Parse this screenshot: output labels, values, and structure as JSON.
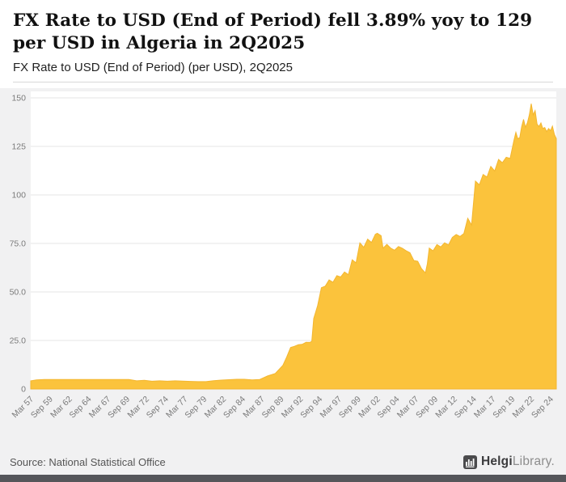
{
  "colors": {
    "page_bg": "#f1f1f2",
    "header_bg": "#ffffff",
    "plot_bg": "#ffffff",
    "area_fill": "#FBC33C",
    "area_edge": "#f3b62f",
    "gridline": "#e6e6e6",
    "baseline": "#cfcfcf",
    "tick_text": "#7a7a7a",
    "bottom_bar": "#55565a"
  },
  "footer": {
    "source": "Source: National Statistical Office",
    "logo_bold": "Helgi",
    "logo_light": "Library."
  },
  "chart_data": {
    "type": "area",
    "title": "FX Rate to USD (End of Period) fell 3.89% yoy to 129 per USD in Algeria in 2Q2025",
    "title_line1": "FX Rate to USD (End of Period) fell 3.89% yoy to 129",
    "title_line2": "per USD in Algeria in 2Q2025",
    "subtitle": "FX Rate to USD (End of Period) (per USD), 2Q2025",
    "country": "Algeria",
    "unit": "per USD",
    "period": "2Q2025",
    "latest_value": 129,
    "yoy_change_pct": -3.89,
    "grid": true,
    "legend": "none",
    "xlim": [
      1957.25,
      2025.5
    ],
    "ylim": [
      0,
      150
    ],
    "fill_color": "#FBC33C",
    "edge_color": "#f3b62f",
    "yticks": [
      {
        "v": 0,
        "label": "0"
      },
      {
        "v": 25,
        "label": "25.0"
      },
      {
        "v": 50,
        "label": "50.0"
      },
      {
        "v": 75,
        "label": "75.0"
      },
      {
        "v": 100,
        "label": "100"
      },
      {
        "v": 125,
        "label": "125"
      },
      {
        "v": 150,
        "label": "150"
      }
    ],
    "xticks": [
      {
        "x": 1957.25,
        "label": "Mar 57"
      },
      {
        "x": 1959.75,
        "label": "Sep 59"
      },
      {
        "x": 1962.25,
        "label": "Mar 62"
      },
      {
        "x": 1964.75,
        "label": "Sep 64"
      },
      {
        "x": 1967.25,
        "label": "Mar 67"
      },
      {
        "x": 1969.75,
        "label": "Sep 69"
      },
      {
        "x": 1972.25,
        "label": "Mar 72"
      },
      {
        "x": 1974.75,
        "label": "Sep 74"
      },
      {
        "x": 1977.25,
        "label": "Mar 77"
      },
      {
        "x": 1979.75,
        "label": "Sep 79"
      },
      {
        "x": 1982.25,
        "label": "Mar 82"
      },
      {
        "x": 1984.75,
        "label": "Sep 84"
      },
      {
        "x": 1987.25,
        "label": "Mar 87"
      },
      {
        "x": 1989.75,
        "label": "Sep 89"
      },
      {
        "x": 1992.25,
        "label": "Mar 92"
      },
      {
        "x": 1994.75,
        "label": "Sep 94"
      },
      {
        "x": 1997.25,
        "label": "Mar 97"
      },
      {
        "x": 1999.75,
        "label": "Sep 99"
      },
      {
        "x": 2002.25,
        "label": "Mar 02"
      },
      {
        "x": 2004.75,
        "label": "Sep 04"
      },
      {
        "x": 2007.25,
        "label": "Mar 07"
      },
      {
        "x": 2009.75,
        "label": "Sep 09"
      },
      {
        "x": 2012.25,
        "label": "Mar 12"
      },
      {
        "x": 2014.75,
        "label": "Sep 14"
      },
      {
        "x": 2017.25,
        "label": "Mar 17"
      },
      {
        "x": 2019.75,
        "label": "Sep 19"
      },
      {
        "x": 2022.25,
        "label": "Mar 22"
      },
      {
        "x": 2024.75,
        "label": "Sep 24"
      }
    ],
    "points": [
      [
        1957.25,
        4.2
      ],
      [
        1958.0,
        4.7
      ],
      [
        1959.0,
        4.9
      ],
      [
        1960.0,
        4.9
      ],
      [
        1962.0,
        4.9
      ],
      [
        1964.0,
        4.9
      ],
      [
        1966.0,
        4.9
      ],
      [
        1968.0,
        4.9
      ],
      [
        1970.0,
        4.9
      ],
      [
        1971.0,
        4.2
      ],
      [
        1972.0,
        4.5
      ],
      [
        1973.0,
        4.0
      ],
      [
        1974.0,
        4.2
      ],
      [
        1975.0,
        4.0
      ],
      [
        1976.0,
        4.2
      ],
      [
        1977.0,
        4.1
      ],
      [
        1978.0,
        3.9
      ],
      [
        1979.0,
        3.8
      ],
      [
        1980.0,
        3.8
      ],
      [
        1981.0,
        4.3
      ],
      [
        1982.0,
        4.6
      ],
      [
        1983.0,
        4.8
      ],
      [
        1984.0,
        5.0
      ],
      [
        1985.0,
        5.0
      ],
      [
        1986.0,
        4.7
      ],
      [
        1987.0,
        4.9
      ],
      [
        1988.0,
        6.7
      ],
      [
        1989.0,
        8.0
      ],
      [
        1990.0,
        12.2
      ],
      [
        1990.5,
        16.6
      ],
      [
        1991.0,
        21.4
      ],
      [
        1991.5,
        22.0
      ],
      [
        1992.0,
        22.8
      ],
      [
        1992.5,
        23.0
      ],
      [
        1993.0,
        24.1
      ],
      [
        1993.5,
        24.0
      ],
      [
        1993.75,
        24.6
      ],
      [
        1994.0,
        36.3
      ],
      [
        1994.5,
        42.9
      ],
      [
        1995.0,
        52.2
      ],
      [
        1995.5,
        53.0
      ],
      [
        1996.0,
        56.2
      ],
      [
        1996.5,
        55.0
      ],
      [
        1997.0,
        58.4
      ],
      [
        1997.5,
        57.7
      ],
      [
        1998.0,
        60.3
      ],
      [
        1998.5,
        58.9
      ],
      [
        1999.0,
        66.6
      ],
      [
        1999.5,
        65.0
      ],
      [
        2000.0,
        75.3
      ],
      [
        2000.5,
        73.0
      ],
      [
        2001.0,
        77.2
      ],
      [
        2001.5,
        75.5
      ],
      [
        2002.0,
        79.7
      ],
      [
        2002.25,
        80.2
      ],
      [
        2002.75,
        79.0
      ],
      [
        2003.0,
        72.6
      ],
      [
        2003.5,
        74.5
      ],
      [
        2004.0,
        72.6
      ],
      [
        2004.5,
        71.5
      ],
      [
        2005.0,
        73.4
      ],
      [
        2005.5,
        72.5
      ],
      [
        2006.0,
        71.2
      ],
      [
        2006.5,
        70.2
      ],
      [
        2007.0,
        66.2
      ],
      [
        2007.5,
        65.8
      ],
      [
        2008.0,
        62.0
      ],
      [
        2008.5,
        59.8
      ],
      [
        2008.75,
        64.5
      ],
      [
        2009.0,
        72.6
      ],
      [
        2009.5,
        71.2
      ],
      [
        2010.0,
        74.4
      ],
      [
        2010.5,
        73.2
      ],
      [
        2011.0,
        75.3
      ],
      [
        2011.5,
        74.2
      ],
      [
        2012.0,
        78.1
      ],
      [
        2012.5,
        79.6
      ],
      [
        2013.0,
        78.6
      ],
      [
        2013.5,
        80.1
      ],
      [
        2014.0,
        87.9
      ],
      [
        2014.5,
        84.5
      ],
      [
        2015.0,
        107.1
      ],
      [
        2015.5,
        105.2
      ],
      [
        2016.0,
        110.5
      ],
      [
        2016.5,
        109.2
      ],
      [
        2017.0,
        114.7
      ],
      [
        2017.5,
        112.3
      ],
      [
        2018.0,
        118.3
      ],
      [
        2018.5,
        116.6
      ],
      [
        2019.0,
        119.4
      ],
      [
        2019.5,
        118.8
      ],
      [
        2020.0,
        128.1
      ],
      [
        2020.25,
        132.2
      ],
      [
        2020.5,
        128.9
      ],
      [
        2020.75,
        129.5
      ],
      [
        2021.0,
        135.1
      ],
      [
        2021.25,
        138.9
      ],
      [
        2021.5,
        134.8
      ],
      [
        2021.75,
        137.2
      ],
      [
        2022.0,
        141.3
      ],
      [
        2022.25,
        147.0
      ],
      [
        2022.5,
        141.2
      ],
      [
        2022.75,
        143.4
      ],
      [
        2023.0,
        136.5
      ],
      [
        2023.25,
        135.2
      ],
      [
        2023.5,
        137.1
      ],
      [
        2023.75,
        134.2
      ],
      [
        2024.0,
        134.7
      ],
      [
        2024.25,
        132.6
      ],
      [
        2024.5,
        134.2
      ],
      [
        2024.75,
        133.1
      ],
      [
        2025.0,
        135.4
      ],
      [
        2025.25,
        131.2
      ],
      [
        2025.5,
        129.0
      ]
    ]
  }
}
